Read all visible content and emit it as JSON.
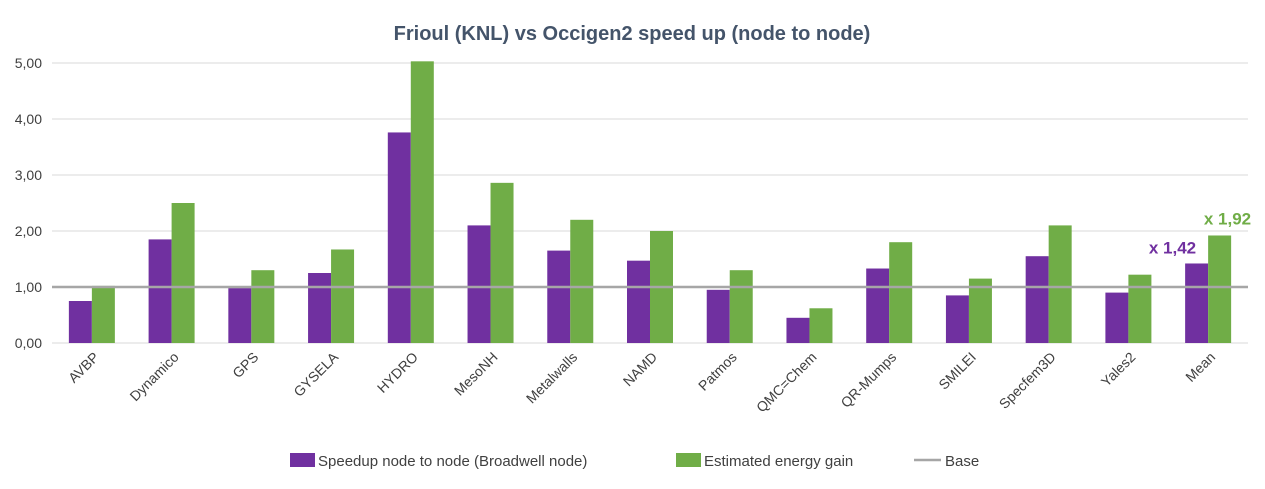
{
  "chart_data": {
    "type": "bar",
    "title": "Frioul (KNL) vs Occigen2 speed up (node to node)",
    "xlabel": "",
    "ylabel": "",
    "ylim": [
      0,
      5
    ],
    "yticks": [
      "0,00",
      "1,00",
      "2,00",
      "3,00",
      "4,00",
      "5,00"
    ],
    "grid": true,
    "legend_position": "bottom",
    "categories": [
      "AVBP",
      "Dynamico",
      "GPS",
      "GYSELA",
      "HYDRO",
      "MesoNH",
      "Metalwalls",
      "NAMD",
      "Patmos",
      "QMC=Chem",
      "QR-Mumps",
      "SMILEI",
      "Specfem3D",
      "Yales2",
      "Mean"
    ],
    "series": [
      {
        "name": "Speedup node to node (Broadwell node)",
        "color": "#7030a0",
        "values": [
          0.75,
          1.85,
          0.98,
          1.25,
          3.76,
          2.1,
          1.65,
          1.47,
          0.95,
          0.45,
          1.33,
          0.85,
          1.55,
          0.9,
          1.42
        ]
      },
      {
        "name": "Estimated energy gain",
        "color": "#70ad47",
        "values": [
          1.02,
          2.5,
          1.3,
          1.67,
          5.03,
          2.86,
          2.2,
          2.0,
          1.3,
          0.62,
          1.8,
          1.15,
          2.1,
          1.22,
          1.92
        ]
      }
    ],
    "reference_line": {
      "name": "Base",
      "value": 1.0,
      "color": "#a6a6a6"
    },
    "annotations": [
      {
        "text": "x 1,42",
        "color": "#7030a0"
      },
      {
        "text": "x 1,92",
        "color": "#70ad47"
      }
    ]
  }
}
